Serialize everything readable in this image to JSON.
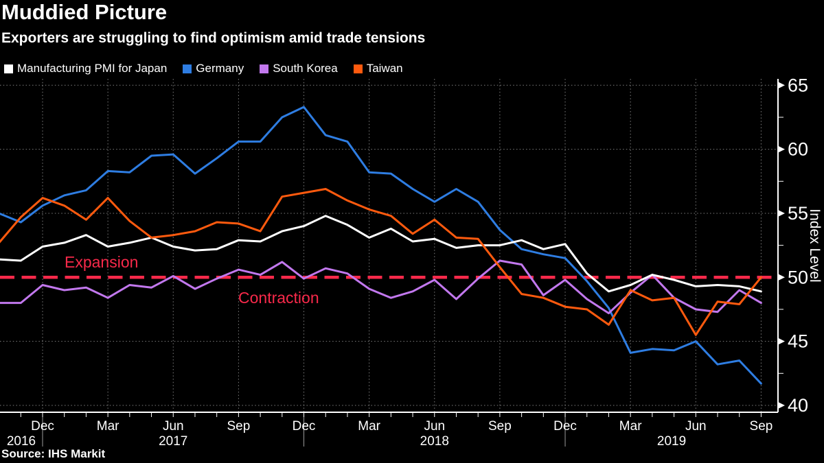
{
  "title": "Muddied Picture",
  "subtitle": "Exporters are struggling to find optimism amid trade tensions",
  "source": "Source: IHS Markit",
  "annotations": {
    "expansion": "Expansion",
    "contraction": "Contraction"
  },
  "colors": {
    "background": "#000000",
    "japan": "#ffffff",
    "germany": "#2e7de2",
    "south_korea": "#c278ee",
    "taiwan": "#ff5a0e",
    "reference_red": "#f8294a",
    "grid": "#a0a0a0",
    "axis": "#ffffff",
    "year_separator": "#9b9b9b"
  },
  "legend": [
    {
      "label": "Manufacturing PMI for Japan",
      "color": "#ffffff"
    },
    {
      "label": "Germany",
      "color": "#2e7de2"
    },
    {
      "label": "South Korea",
      "color": "#c278ee"
    },
    {
      "label": "Taiwan",
      "color": "#ff5a0e"
    }
  ],
  "chart_data": {
    "type": "line",
    "title": "Muddied Picture",
    "xlabel": "",
    "ylabel": "Index Level",
    "ylim": [
      39.5,
      65.5
    ],
    "yticks": [
      65,
      60,
      55,
      50,
      45,
      40
    ],
    "y_minor_ticks": [
      62.5,
      57.5,
      52.5,
      47.5,
      42.5
    ],
    "grid": "dotted",
    "legend_position": "top-left",
    "reference_line": {
      "value": 50,
      "style": "dashed",
      "color": "#f8294a",
      "label_above": "Expansion",
      "label_below": "Contraction"
    },
    "x_quarter_tick_labels": [
      "Dec",
      "Mar",
      "Jun",
      "Sep",
      "Dec",
      "Mar",
      "Jun",
      "Sep",
      "Dec",
      "Mar",
      "Jun",
      "Sep"
    ],
    "x_year_labels": [
      "2016",
      "2017",
      "2018",
      "2019"
    ],
    "x": [
      "Oct 2016",
      "Nov 2016",
      "Dec 2016",
      "Jan 2017",
      "Feb 2017",
      "Mar 2017",
      "Apr 2017",
      "May 2017",
      "Jun 2017",
      "Jul 2017",
      "Aug 2017",
      "Sep 2017",
      "Oct 2017",
      "Nov 2017",
      "Dec 2017",
      "Jan 2018",
      "Feb 2018",
      "Mar 2018",
      "Apr 2018",
      "May 2018",
      "Jun 2018",
      "Jul 2018",
      "Aug 2018",
      "Sep 2018",
      "Oct 2018",
      "Nov 2018",
      "Dec 2018",
      "Jan 2019",
      "Feb 2019",
      "Mar 2019",
      "Apr 2019",
      "May 2019",
      "Jun 2019",
      "Jul 2019",
      "Aug 2019",
      "Sep 2019"
    ],
    "series": [
      {
        "name": "Manufacturing PMI for Japan",
        "color": "#ffffff",
        "values": [
          51.4,
          51.3,
          52.4,
          52.7,
          53.3,
          52.4,
          52.7,
          53.1,
          52.4,
          52.1,
          52.2,
          52.9,
          52.8,
          53.6,
          54.0,
          54.8,
          54.1,
          53.1,
          53.8,
          52.8,
          53.0,
          52.3,
          52.5,
          52.5,
          52.9,
          52.2,
          52.6,
          50.3,
          48.9,
          49.4,
          50.2,
          49.8,
          49.3,
          49.4,
          49.3,
          48.9
        ]
      },
      {
        "name": "Germany",
        "color": "#2e7de2",
        "values": [
          55.0,
          54.3,
          55.6,
          56.4,
          56.8,
          58.3,
          58.2,
          59.5,
          59.6,
          58.1,
          59.3,
          60.6,
          60.6,
          62.5,
          63.3,
          61.1,
          60.6,
          58.2,
          58.1,
          56.9,
          55.9,
          56.9,
          55.9,
          53.7,
          52.2,
          51.8,
          51.5,
          49.7,
          47.6,
          44.1,
          44.4,
          44.3,
          45.0,
          43.2,
          43.5,
          41.7
        ]
      },
      {
        "name": "South Korea",
        "color": "#c278ee",
        "values": [
          48.0,
          48.0,
          49.4,
          49.0,
          49.2,
          48.4,
          49.4,
          49.2,
          50.1,
          49.1,
          49.9,
          50.6,
          50.2,
          51.2,
          49.9,
          50.7,
          50.3,
          49.1,
          48.4,
          48.9,
          49.8,
          48.3,
          49.9,
          51.3,
          51.0,
          48.6,
          49.8,
          48.3,
          47.2,
          48.8,
          50.2,
          48.4,
          47.5,
          47.3,
          49.0,
          48.0
        ]
      },
      {
        "name": "Taiwan",
        "color": "#ff5a0e",
        "values": [
          52.7,
          54.7,
          56.2,
          55.6,
          54.5,
          56.2,
          54.4,
          53.1,
          53.3,
          53.6,
          54.3,
          54.2,
          53.6,
          56.3,
          56.6,
          56.9,
          56.0,
          55.3,
          54.8,
          53.4,
          54.5,
          53.1,
          53.0,
          50.8,
          48.7,
          48.4,
          47.7,
          47.5,
          46.3,
          49.0,
          48.2,
          48.4,
          45.5,
          48.1,
          47.9,
          50.0
        ]
      }
    ]
  }
}
